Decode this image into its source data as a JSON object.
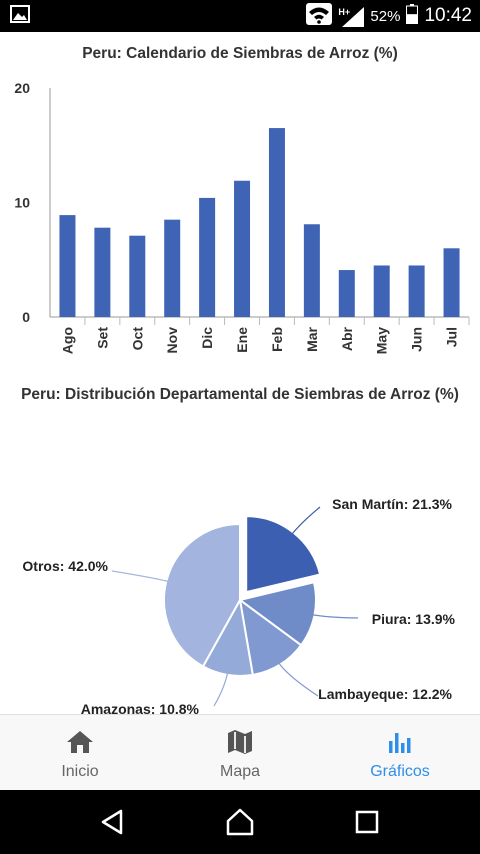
{
  "status_bar": {
    "network_type": "H+",
    "battery_percent": "52%",
    "battery_level": 0.52,
    "time": "10:42",
    "icons": [
      "gallery-notification-icon",
      "wifi-icon",
      "signal-icon",
      "battery-icon"
    ]
  },
  "charts": {
    "bar_title": "Peru: Calendario de Siembras de Arroz (%)",
    "pie_title": "Peru: Distribución Departamental de Siembras de Arroz (%)"
  },
  "chart_data": [
    {
      "type": "bar",
      "title": "Peru: Calendario de Siembras de Arroz (%)",
      "categories": [
        "Ago",
        "Set",
        "Oct",
        "Nov",
        "Dic",
        "Ene",
        "Feb",
        "Mar",
        "Abr",
        "May",
        "Jun",
        "Jul"
      ],
      "values": [
        8.9,
        7.8,
        7.1,
        8.5,
        10.4,
        11.9,
        16.5,
        8.1,
        4.1,
        4.5,
        4.5,
        6.0
      ],
      "yticks": [
        "0",
        "10",
        "20"
      ],
      "ylim": [
        0,
        20
      ],
      "color": "#3f63b5",
      "grid": false
    },
    {
      "type": "pie",
      "title": "Peru: Distribución Departamental de Siembras de Arroz (%)",
      "slices": [
        {
          "label": "San Martín",
          "value": 21.3,
          "display": "San Martín: 21.3%",
          "color": "#3c5fb1",
          "exploded": true
        },
        {
          "label": "Piura",
          "value": 13.9,
          "display": "Piura: 13.9%",
          "color": "#6f8cc9"
        },
        {
          "label": "Lambayeque",
          "value": 12.2,
          "display": "Lambayeque: 12.2%",
          "color": "#8199d1"
        },
        {
          "label": "Amazonas",
          "value": 10.8,
          "display": "Amazonas: 10.8%",
          "color": "#94aad9"
        },
        {
          "label": "Otros",
          "value": 42.0,
          "display": "Otros: 42.0%",
          "color": "#a3b5df"
        }
      ]
    }
  ],
  "bottom_nav": {
    "items": [
      {
        "label": "Inicio",
        "icon": "home-icon",
        "active": false
      },
      {
        "label": "Mapa",
        "icon": "map-icon",
        "active": false
      },
      {
        "label": "Gráficos",
        "icon": "bar-chart-icon",
        "active": true
      }
    ]
  },
  "system_nav": {
    "icons": [
      "back-icon",
      "home-circle-icon",
      "recents-icon"
    ]
  },
  "colors": {
    "accent": "#2f8ee8",
    "bar": "#3f63b5",
    "status_bar": "#000000"
  }
}
